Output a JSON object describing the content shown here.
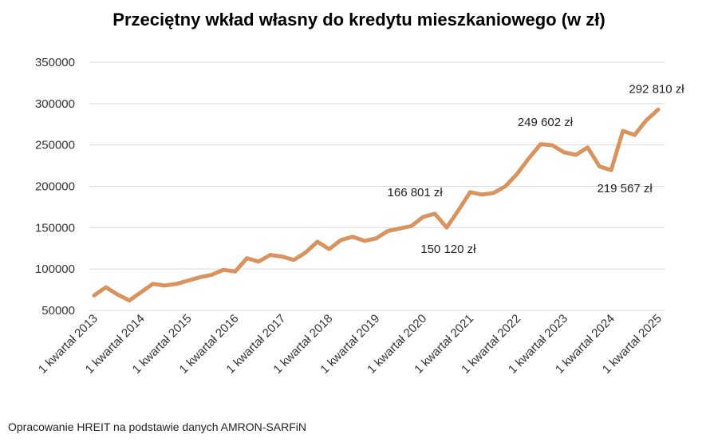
{
  "chart_data": {
    "type": "line",
    "title": "Przeciętny wkład własny do kredytu mieszkaniowego (w zł)",
    "xlabel": "",
    "ylabel": "",
    "ylim": [
      50000,
      350000
    ],
    "yticks": [
      350000,
      300000,
      250000,
      200000,
      150000,
      100000,
      50000
    ],
    "ytick_labels": [
      "350000",
      "300000",
      "250000",
      "200000",
      "150000",
      "100000",
      "50000"
    ],
    "x_tick_labels": [
      "1 kwartał 2013",
      "1 kwartał 2014",
      "1 kwartał 2015",
      "1 kwartał 2016",
      "1 kwartał 2017",
      "1 kwartał 2018",
      "1 kwartał 2019",
      "1 kwartał 2020",
      "1 kwartał 2021",
      "1 kwartał 2022",
      "1 kwartał 2023",
      "1 kwartał 2024",
      "1 kwartał 2025"
    ],
    "grid": true,
    "line_color": "#D9935F",
    "series": [
      {
        "values": [
          68000,
          78000,
          69000,
          62000,
          72000,
          82000,
          80000,
          82000,
          86000,
          90000,
          93000,
          99000,
          97000,
          113000,
          109000,
          117000,
          115000,
          111000,
          120000,
          133000,
          124000,
          135000,
          139000,
          134000,
          137000,
          146000,
          149000,
          152000,
          163000,
          166801,
          150120,
          171000,
          193000,
          190000,
          192000,
          200000,
          215000,
          234000,
          251000,
          249602,
          241000,
          238000,
          247000,
          224000,
          219567,
          267000,
          262000,
          280000,
          292810
        ]
      }
    ],
    "annotations": [
      {
        "index": 29,
        "text": "166 801 zł",
        "pos": "above"
      },
      {
        "index": 30,
        "text": "150 120 zł",
        "pos": "below"
      },
      {
        "index": 39,
        "text": "249 602 zł",
        "pos": "above"
      },
      {
        "index": 44,
        "text": "219 567 zł",
        "pos": "below"
      },
      {
        "index": 48,
        "text": "292 810 zł",
        "pos": "above"
      }
    ]
  },
  "footer": {
    "source": "Opracowanie HREIT na podstawie danych AMRON-SARFiN"
  }
}
